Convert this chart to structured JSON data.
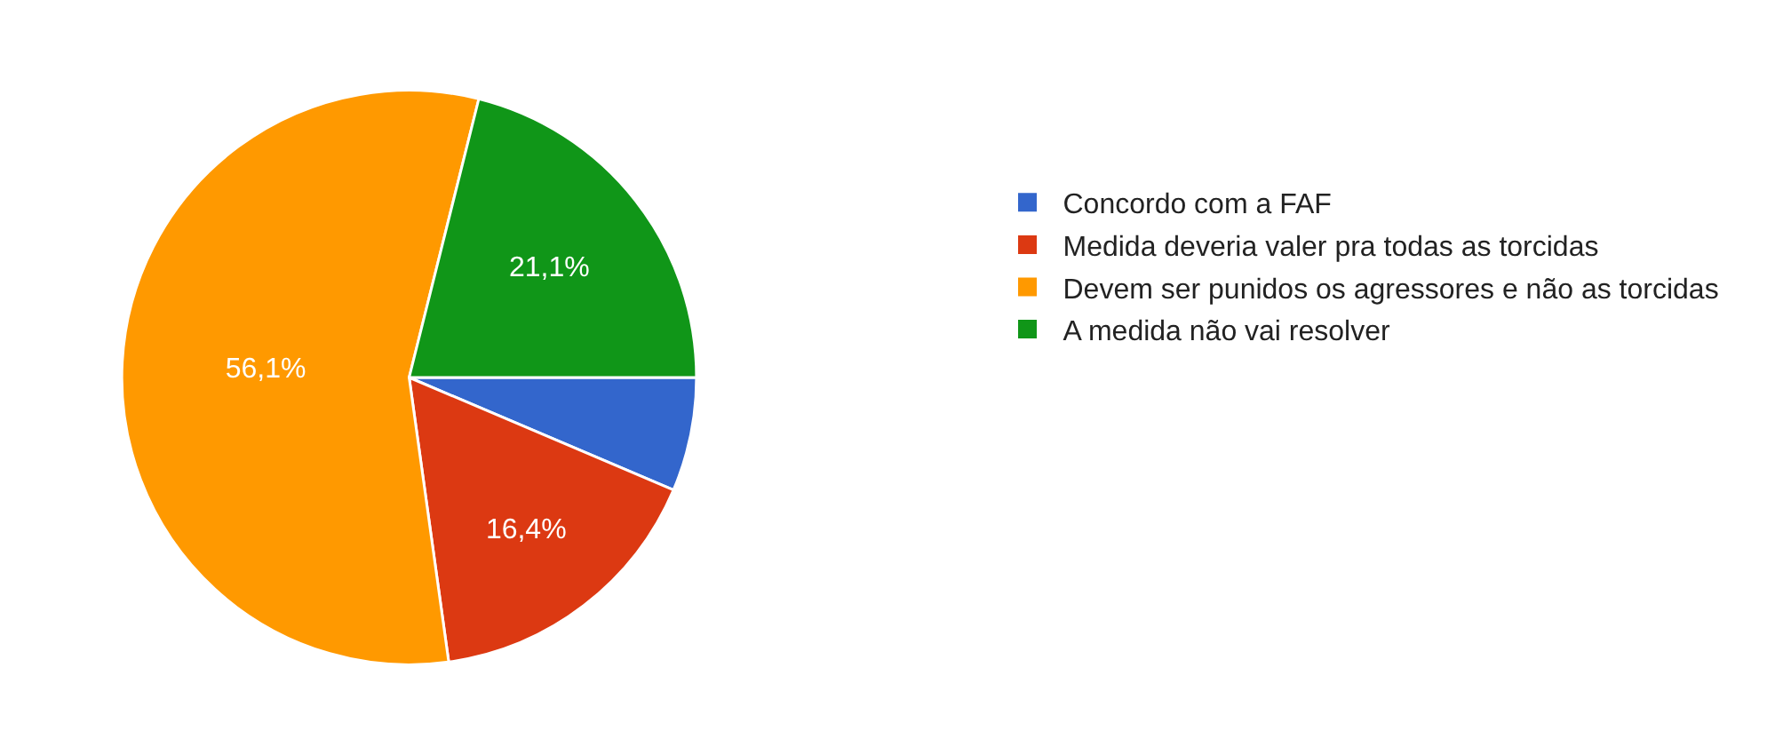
{
  "chart_data": {
    "type": "pie",
    "categories": [
      "Concordo com a FAF",
      "Medida deveria valer pra todas as torcidas",
      "Devem ser punidos os agressores e não as torcidas",
      "A medida não vai resolver"
    ],
    "values": [
      6.4,
      16.4,
      56.1,
      21.1
    ],
    "colors": [
      "#3366cc",
      "#dc3912",
      "#ff9900",
      "#109618"
    ],
    "value_labels": [
      null,
      "16,4%",
      "56,1%",
      "21,1%"
    ],
    "legend": "right"
  }
}
